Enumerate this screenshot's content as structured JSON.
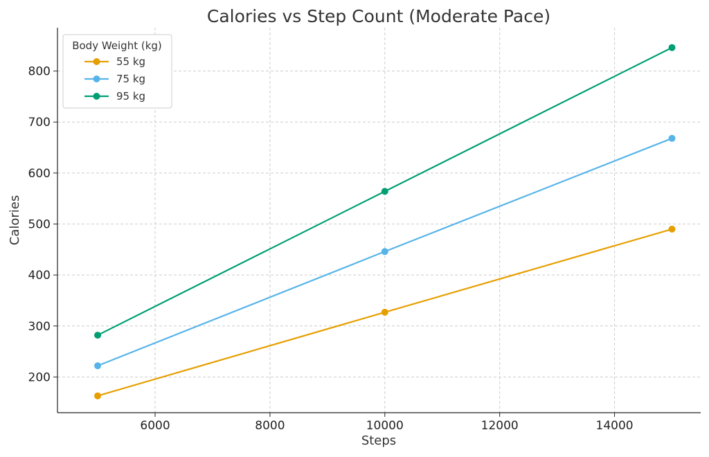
{
  "chart_data": {
    "type": "line",
    "title": "Calories vs Step Count (Moderate Pace)",
    "xlabel": "Steps",
    "ylabel": "Calories",
    "x": [
      5000,
      10000,
      15000
    ],
    "xlim": [
      4300,
      15500
    ],
    "ylim": [
      130,
      885
    ],
    "xticks": [
      6000,
      8000,
      10000,
      12000,
      14000
    ],
    "yticks": [
      200,
      300,
      400,
      500,
      600,
      700,
      800
    ],
    "grid": true,
    "legend": {
      "title": "Body Weight (kg)",
      "placement": "top-left"
    },
    "series": [
      {
        "name": "55 kg",
        "color": "#E69F00",
        "values": [
          163,
          327,
          490
        ]
      },
      {
        "name": "75 kg",
        "color": "#56B4E9",
        "values": [
          222,
          446,
          668
        ]
      },
      {
        "name": "95 kg",
        "color": "#009E73",
        "values": [
          282,
          564,
          846
        ]
      }
    ]
  }
}
